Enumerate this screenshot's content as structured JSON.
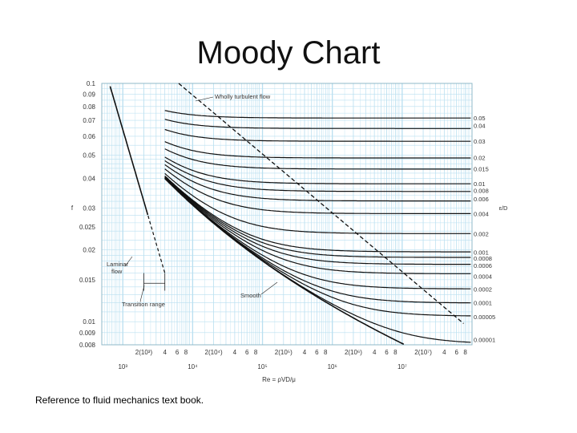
{
  "slide": {
    "title": "Moody Chart",
    "footnote": "Reference to fluid mechanics text book."
  },
  "chart_data": {
    "type": "line",
    "x_scale": "log",
    "y_scale": "log",
    "xlim": [
      500,
      100000000
    ],
    "ylim": [
      0.008,
      0.1
    ],
    "ylabel": "f",
    "xlabel": "Re = ρVD/μ",
    "right_axis_label": "ε/D",
    "y_ticks": [
      {
        "value": 0.1,
        "label": "0.1"
      },
      {
        "value": 0.09,
        "label": "0.09"
      },
      {
        "value": 0.08,
        "label": "0.08"
      },
      {
        "value": 0.07,
        "label": "0.07"
      },
      {
        "value": 0.06,
        "label": "0.06"
      },
      {
        "value": 0.05,
        "label": "0.05"
      },
      {
        "value": 0.04,
        "label": "0.04"
      },
      {
        "value": 0.03,
        "label": "0.03"
      },
      {
        "value": 0.025,
        "label": "0.025"
      },
      {
        "value": 0.02,
        "label": "0.02"
      },
      {
        "value": 0.015,
        "label": "0.015"
      },
      {
        "value": 0.01,
        "label": "0.01"
      },
      {
        "value": 0.009,
        "label": "0.009"
      },
      {
        "value": 0.008,
        "label": "0.008"
      }
    ],
    "x_minor_ticks": [
      {
        "value": 2000,
        "label": "2(10³)"
      },
      {
        "value": 4000,
        "label": "4"
      },
      {
        "value": 6000,
        "label": "6"
      },
      {
        "value": 8000,
        "label": "8"
      },
      {
        "value": 20000,
        "label": "2(10⁴)"
      },
      {
        "value": 40000,
        "label": "4"
      },
      {
        "value": 60000,
        "label": "6"
      },
      {
        "value": 80000,
        "label": "8"
      },
      {
        "value": 200000,
        "label": "2(10⁵)"
      },
      {
        "value": 400000,
        "label": "4"
      },
      {
        "value": 600000,
        "label": "6"
      },
      {
        "value": 800000,
        "label": "8"
      },
      {
        "value": 2000000,
        "label": "2(10⁶)"
      },
      {
        "value": 4000000,
        "label": "4"
      },
      {
        "value": 6000000,
        "label": "6"
      },
      {
        "value": 8000000,
        "label": "8"
      },
      {
        "value": 20000000,
        "label": "2(10⁷)"
      },
      {
        "value": 40000000,
        "label": "4"
      },
      {
        "value": 60000000,
        "label": "6"
      },
      {
        "value": 80000000,
        "label": "8"
      }
    ],
    "x_major_ticks": [
      {
        "value": 1000,
        "label": "10³"
      },
      {
        "value": 10000,
        "label": "10⁴"
      },
      {
        "value": 100000,
        "label": "10⁵"
      },
      {
        "value": 1000000,
        "label": "10⁶"
      },
      {
        "value": 10000000,
        "label": "10⁷"
      }
    ],
    "roughness_labels": [
      {
        "f": 0.0717,
        "label": "0.05"
      },
      {
        "f": 0.0667,
        "label": "0.04"
      },
      {
        "f": 0.0572,
        "label": "0.03"
      },
      {
        "f": 0.0488,
        "label": "0.02"
      },
      {
        "f": 0.0438,
        "label": "0.015"
      },
      {
        "f": 0.0379,
        "label": "0.01"
      },
      {
        "f": 0.0356,
        "label": "0.008"
      },
      {
        "f": 0.0328,
        "label": "0.006"
      },
      {
        "f": 0.0284,
        "label": "0.004"
      },
      {
        "f": 0.0234,
        "label": "0.002"
      },
      {
        "f": 0.0196,
        "label": "0.001"
      },
      {
        "f": 0.0185,
        "label": "0.0008"
      },
      {
        "f": 0.0172,
        "label": "0.0006"
      },
      {
        "f": 0.0155,
        "label": "0.0004"
      },
      {
        "f": 0.0137,
        "label": "0.0002"
      },
      {
        "f": 0.012,
        "label": "0.0001"
      },
      {
        "f": 0.0105,
        "label": "0.00005"
      },
      {
        "f": 0.0084,
        "label": "0.00001"
      }
    ],
    "series_roughness": [
      0.05,
      0.04,
      0.03,
      0.02,
      0.015,
      0.01,
      0.008,
      0.006,
      0.004,
      0.002,
      0.001,
      0.0008,
      0.0006,
      0.0004,
      0.0002,
      0.0001,
      5e-05,
      1e-05,
      0
    ],
    "turbulent_start_re": 4000,
    "laminar_range": [
      600,
      2300
    ],
    "annotations": {
      "wholly_turbulent": "Wholly turbulent flow",
      "laminar": "Laminar flow",
      "transition": "Transition range",
      "smooth": "Smooth"
    },
    "colors": {
      "grid": "#b9dff0",
      "curve": "#111111",
      "frame": "#8fb8c8"
    }
  }
}
